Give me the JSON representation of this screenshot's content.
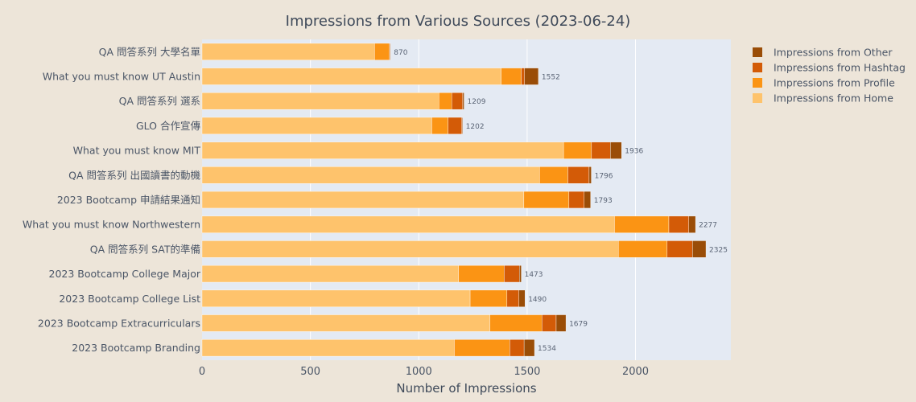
{
  "colors": {
    "background": "#ede5d9",
    "plot_background": "#e4eaf3",
    "home": "#fec36c",
    "profile": "#fb9414",
    "hashtag": "#d35b07",
    "other": "#9a4d07",
    "text": "#3f4a5a",
    "tick_text": "#4a5566",
    "bar_label": "#5a6475"
  },
  "chart_data": {
    "type": "bar",
    "orientation": "horizontal",
    "stacked": true,
    "title": "Impressions from Various Sources (2023-06-24)",
    "xlabel": "Number of Impressions",
    "ylabel": "",
    "xlim": [
      0,
      2440
    ],
    "xticks": [
      0,
      500,
      1000,
      1500,
      2000
    ],
    "grid": true,
    "legend_position": "top-right",
    "categories": [
      "QA 問答系列 大學名單",
      "What you must know UT Austin",
      "QA 問答系列 選系",
      "GLO 合作宣傳",
      "What you must know MIT",
      "QA 問答系列 出國讀書的動機",
      "2023 Bootcamp 申請結果通知",
      "What you must know Northwestern",
      "QA 問答系列 SAT的準備",
      "2023 Bootcamp College Major",
      "2023 Bootcamp College List",
      "2023 Bootcamp Extracurriculars",
      "2023 Bootcamp Branding"
    ],
    "series": [
      {
        "name": "Impressions from Home",
        "color_key": "home",
        "values": [
          796,
          1380,
          1093,
          1060,
          1668,
          1557,
          1485,
          1903,
          1921,
          1184,
          1237,
          1328,
          1164
        ]
      },
      {
        "name": "Impressions from Profile",
        "color_key": "profile",
        "values": [
          69,
          93,
          59,
          75,
          129,
          131,
          208,
          251,
          225,
          210,
          170,
          240,
          256
        ]
      },
      {
        "name": "Impressions from Hashtag",
        "color_key": "hashtag",
        "values": [
          2,
          15,
          51,
          64,
          87,
          98,
          70,
          92,
          117,
          70,
          55,
          66,
          66
        ]
      },
      {
        "name": "Impressions from Other",
        "color_key": "other",
        "values": [
          3,
          64,
          6,
          3,
          52,
          10,
          30,
          31,
          62,
          9,
          28,
          45,
          48
        ]
      }
    ],
    "totals": [
      870,
      1552,
      1209,
      1202,
      1936,
      1796,
      1793,
      2277,
      2325,
      1473,
      1490,
      1679,
      1534
    ]
  }
}
